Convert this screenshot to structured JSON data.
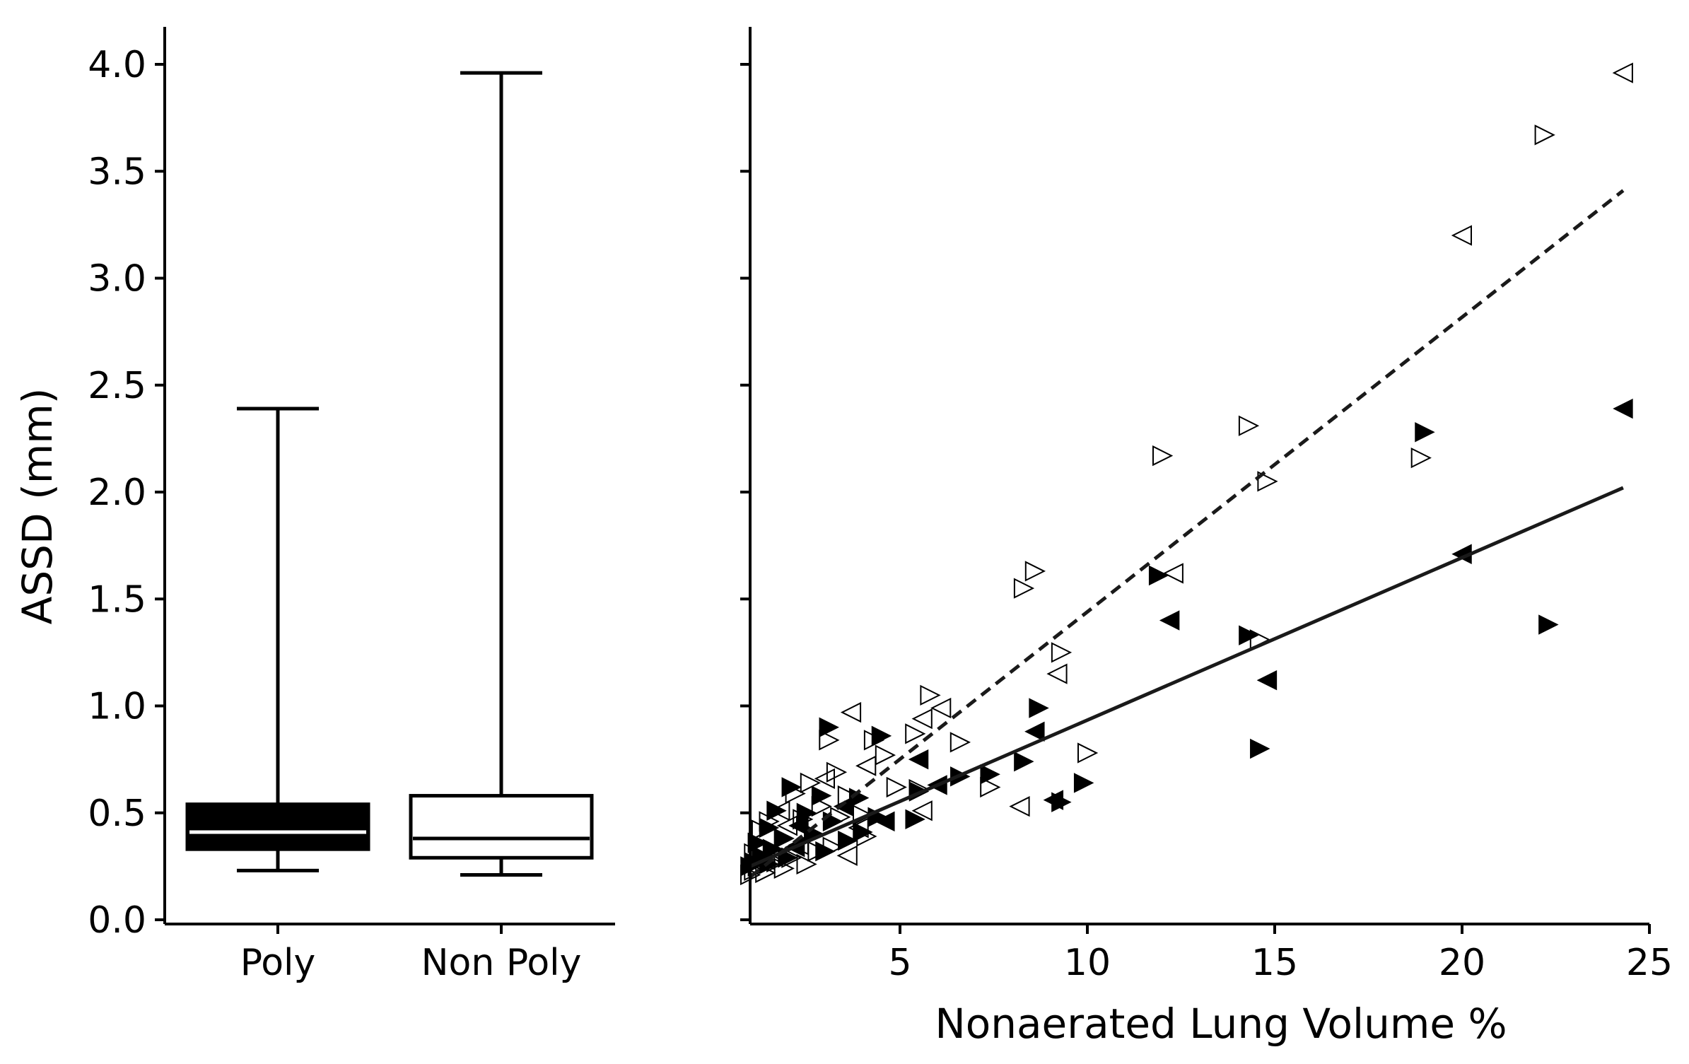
{
  "chart_data": [
    {
      "type": "box",
      "ylabel": "ASSD (mm)",
      "ylim": [
        -0.05,
        4.2
      ],
      "yticks": [
        0.0,
        0.5,
        1.0,
        1.5,
        2.0,
        2.5,
        3.0,
        3.5,
        4.0
      ],
      "ytick_labels": [
        "0.0",
        "0.5",
        "1.0",
        "1.5",
        "2.0",
        "2.5",
        "3.0",
        "3.5",
        "4.0"
      ],
      "categories": [
        "Poly",
        "Non Poly"
      ],
      "boxes": [
        {
          "name": "Poly",
          "fill": "#000000",
          "median_color": "#ffffff",
          "whisker_low": 0.23,
          "q1": 0.33,
          "median": 0.41,
          "q3": 0.54,
          "whisker_high": 2.39
        },
        {
          "name": "Non Poly",
          "fill": "#ffffff",
          "median_color": "#000000",
          "whisker_low": 0.21,
          "q1": 0.29,
          "median": 0.38,
          "q3": 0.58,
          "whisker_high": 3.96
        }
      ]
    },
    {
      "type": "scatter",
      "xlabel": "Nonaerated Lung Volume %",
      "xlim": [
        1,
        25
      ],
      "ylim": [
        -0.05,
        4.2
      ],
      "xticks": [
        5,
        10,
        15,
        20,
        25
      ],
      "xtick_labels": [
        "5",
        "10",
        "15",
        "20",
        "25"
      ],
      "series": [
        {
          "name": "Non Poly",
          "style": "open",
          "points": [
            [
              24.3,
              3.96,
              "l"
            ],
            [
              22.2,
              3.67,
              "r"
            ],
            [
              20.0,
              3.2,
              "l"
            ],
            [
              14.3,
              2.31,
              "r"
            ],
            [
              12.0,
              2.17,
              "r"
            ],
            [
              18.9,
              2.16,
              "r"
            ],
            [
              14.8,
              2.05,
              "r"
            ],
            [
              8.6,
              1.63,
              "r"
            ],
            [
              8.3,
              1.55,
              "r"
            ],
            [
              12.3,
              1.62,
              "l"
            ],
            [
              14.6,
              1.31,
              "r"
            ],
            [
              9.3,
              1.25,
              "r"
            ],
            [
              9.2,
              1.15,
              "l"
            ],
            [
              5.8,
              1.05,
              "r"
            ],
            [
              6.1,
              0.99,
              "l"
            ],
            [
              3.7,
              0.97,
              "l"
            ],
            [
              5.6,
              0.94,
              "l"
            ],
            [
              5.4,
              0.87,
              "r"
            ],
            [
              6.6,
              0.83,
              "r"
            ],
            [
              4.3,
              0.84,
              "r"
            ],
            [
              3.1,
              0.84,
              "r"
            ],
            [
              10.0,
              0.78,
              "r"
            ],
            [
              4.6,
              0.77,
              "r"
            ],
            [
              4.1,
              0.72,
              "l"
            ],
            [
              3.3,
              0.69,
              "r"
            ],
            [
              3.0,
              0.66,
              "l"
            ],
            [
              2.6,
              0.64,
              "r"
            ],
            [
              7.4,
              0.62,
              "r"
            ],
            [
              4.9,
              0.62,
              "r"
            ],
            [
              5.5,
              0.61,
              "r"
            ],
            [
              2.2,
              0.59,
              "r"
            ],
            [
              3.6,
              0.58,
              "r"
            ],
            [
              8.2,
              0.53,
              "l"
            ],
            [
              2.9,
              0.53,
              "r"
            ],
            [
              5.6,
              0.51,
              "l"
            ],
            [
              1.8,
              0.51,
              "l"
            ],
            [
              4.0,
              0.49,
              "r"
            ],
            [
              3.4,
              0.48,
              "r"
            ],
            [
              2.4,
              0.47,
              "r"
            ],
            [
              1.5,
              0.46,
              "r"
            ],
            [
              2.0,
              0.44,
              "l"
            ],
            [
              3.9,
              0.43,
              "l"
            ],
            [
              1.3,
              0.42,
              "r"
            ],
            [
              2.7,
              0.4,
              "r"
            ],
            [
              4.1,
              0.39,
              "r"
            ],
            [
              1.9,
              0.38,
              "r"
            ],
            [
              1.2,
              0.36,
              "r"
            ],
            [
              2.3,
              0.35,
              "l"
            ],
            [
              3.2,
              0.34,
              "r"
            ],
            [
              1.6,
              0.33,
              "r"
            ],
            [
              2.8,
              0.32,
              "r"
            ],
            [
              1.1,
              0.31,
              "r"
            ],
            [
              3.6,
              0.3,
              "l"
            ],
            [
              2.1,
              0.29,
              "r"
            ],
            [
              1.4,
              0.28,
              "l"
            ],
            [
              1.7,
              0.27,
              "r"
            ],
            [
              1.2,
              0.25,
              "r"
            ],
            [
              2.5,
              0.26,
              "r"
            ],
            [
              1.9,
              0.24,
              "r"
            ],
            [
              1.1,
              0.23,
              "r"
            ],
            [
              1.4,
              0.22,
              "r"
            ],
            [
              1.0,
              0.21,
              "r"
            ]
          ]
        },
        {
          "name": "Poly",
          "style": "filled",
          "points": [
            [
              24.3,
              2.39,
              "l"
            ],
            [
              19.0,
              2.28,
              "r"
            ],
            [
              20.0,
              1.71,
              "l"
            ],
            [
              11.9,
              1.61,
              "r"
            ],
            [
              12.2,
              1.4,
              "l"
            ],
            [
              22.3,
              1.38,
              "r"
            ],
            [
              14.3,
              1.33,
              "r"
            ],
            [
              14.8,
              1.12,
              "l"
            ],
            [
              14.6,
              0.8,
              "r"
            ],
            [
              8.7,
              0.99,
              "r"
            ],
            [
              8.6,
              0.88,
              "l"
            ],
            [
              3.1,
              0.9,
              "r"
            ],
            [
              4.5,
              0.86,
              "r"
            ],
            [
              5.5,
              0.75,
              "l"
            ],
            [
              8.3,
              0.74,
              "r"
            ],
            [
              6.6,
              0.67,
              "r"
            ],
            [
              7.4,
              0.68,
              "r"
            ],
            [
              9.9,
              0.64,
              "r"
            ],
            [
              6.0,
              0.63,
              "l"
            ],
            [
              5.5,
              0.6,
              "r"
            ],
            [
              9.3,
              0.55,
              "r"
            ],
            [
              9.1,
              0.56,
              "l"
            ],
            [
              4.6,
              0.46,
              "l"
            ],
            [
              5.4,
              0.47,
              "r"
            ],
            [
              4.4,
              0.48,
              "r"
            ],
            [
              3.9,
              0.57,
              "r"
            ],
            [
              2.1,
              0.62,
              "r"
            ],
            [
              2.9,
              0.58,
              "r"
            ],
            [
              3.5,
              0.53,
              "l"
            ],
            [
              2.5,
              0.5,
              "r"
            ],
            [
              1.7,
              0.51,
              "r"
            ],
            [
              3.2,
              0.46,
              "r"
            ],
            [
              2.3,
              0.44,
              "l"
            ],
            [
              1.5,
              0.43,
              "r"
            ],
            [
              4.0,
              0.41,
              "r"
            ],
            [
              2.7,
              0.4,
              "r"
            ],
            [
              1.9,
              0.38,
              "r"
            ],
            [
              3.6,
              0.37,
              "r"
            ],
            [
              1.2,
              0.36,
              "r"
            ],
            [
              2.2,
              0.34,
              "l"
            ],
            [
              1.6,
              0.33,
              "r"
            ],
            [
              3.0,
              0.32,
              "r"
            ],
            [
              1.3,
              0.3,
              "r"
            ],
            [
              2.0,
              0.29,
              "r"
            ],
            [
              1.1,
              0.27,
              "r"
            ],
            [
              1.5,
              0.26,
              "r"
            ],
            [
              1.0,
              0.25,
              "r"
            ]
          ]
        }
      ],
      "fits": [
        {
          "name": "Non Poly",
          "style": "dashed",
          "x": [
            1.0,
            24.3
          ],
          "y": [
            0.2,
            3.41
          ]
        },
        {
          "name": "Poly",
          "style": "solid",
          "x": [
            1.0,
            24.3
          ],
          "y": [
            0.25,
            2.02
          ]
        }
      ]
    }
  ]
}
